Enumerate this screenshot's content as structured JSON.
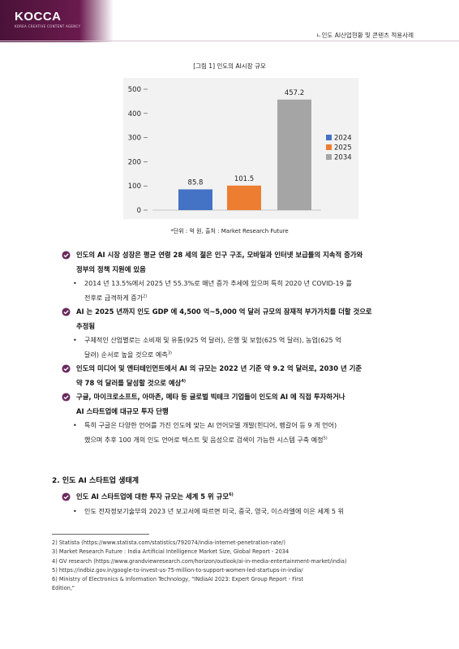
{
  "header": {
    "logo": "KOCCA",
    "logo_sub": "KOREA CREATIVE CONTENT AGENCY",
    "running_title": "ㄴ인도 AI산업현황 및 콘텐츠 적용사례"
  },
  "figure": {
    "caption": "[그림 1] 인도의 AI시장 규모",
    "source": "*단위 : 억 원, 출처 : Market Research Future"
  },
  "chart_data": {
    "type": "bar",
    "categories": [
      "2024",
      "2025",
      "2034"
    ],
    "values": [
      85.8,
      101.5,
      457.2
    ],
    "value_labels": [
      "85.8",
      "101.5",
      "457.2"
    ],
    "ylim": [
      0,
      500
    ],
    "yticks": [
      "0",
      "100",
      "200",
      "300",
      "400",
      "500"
    ],
    "colors": [
      "#4472c4",
      "#ed7d31",
      "#a5a5a5"
    ],
    "legend": [
      "2024",
      "2025",
      "2034"
    ],
    "legend_position": "right",
    "grid": false
  },
  "body": {
    "b1": "인도의 AI 시장 성장은 평균 연령 28 세의 젊은 인구 구조, 모바일과 인터넷 보급률의 지속적 증가와",
    "b1_cont": "정부의 정책 지원에 있음",
    "b1_s1": "2014 년 13.5%에서 2025 년 55.3%로 매년 증가 추세에 있으며 특히 2020 년 COVID-19 를",
    "b1_s1_cont": "전후로 급격하게 증가",
    "b1_s1_fn": "2)",
    "b2": "AI 는 2025 년까지 인도 GDP 에 4,500 억~5,000 억 달러 규모의 잠재적 부가가치를 더할 것으로",
    "b2_cont": "추정됨",
    "b2_s1": "구체적인 산업별로는 소비재 및 유통(925 억 달러), 은행 및 보험(625 억 달러), 농업(625 억",
    "b2_s1_cont": "달러) 순서로 높을 것으로 예측",
    "b2_s1_fn": "3)",
    "b3": "인도의 미디어 및 엔터테인먼트에서 AI 의 규모는 2022 년 기준 약 9.2 억 달러로, 2030 년 기준",
    "b3_cont": "약 78 억 달러를 달성할 것으로 예상",
    "b3_fn": "4)",
    "b4": "구글, 마이크로소프트, 아마존, 메타 등 글로벌 빅테크 기업들이 인도의 AI 에 직접 투자하거나",
    "b4_cont": "AI 스타트업에 대규모 투자 단행",
    "b4_s1": "특히 구글은 다양한 언어를 가진 인도에 맞는 AI 언어모델 개발(힌디어, 벵갈어 등 9 개 언어)",
    "b4_s1_cont": "했으며 추후 100 개의 인도 언어로 텍스트 및 음성으로 검색이 가능한 시스템 구축 예정",
    "b4_s1_fn": "5)",
    "section2": "2. 인도 AI 스타트업 생태계",
    "b5": "인도 AI 스타트업에 대한 투자 규모는 세계 5 위 규모",
    "b5_fn": "6)",
    "b5_s1": "인도 전자정보기술부의 2023 년 보고서에 따르면 미국, 중국, 영국, 이스라엘에 이은 세계 5 위"
  },
  "footnotes": [
    "2) Statista (https://www.statista.com/statistics/792074/india-internet-penetration-rate/)",
    "3) Market Research Future : India Artificial Intelligence Market Size, Global Report - 2034",
    "4) GV research (https://www.grandviewresearch.com/horizon/outlook/ai-in-media-entertainment-market/india)",
    "5) https://indbiz.gov.in/google-to-invest-us-75-million-to-support-women-led-startups-in-india/",
    "6) Ministry of Electronics & Information Technology, \"INdiaAI 2023: Expert Group Report - First",
    "Edition,\""
  ]
}
